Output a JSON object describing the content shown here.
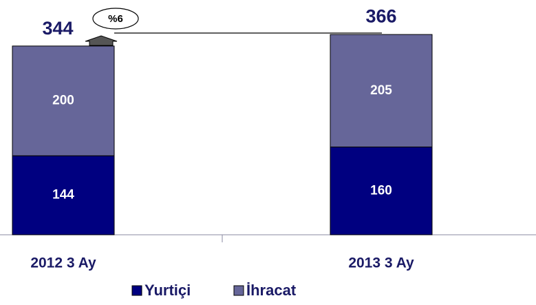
{
  "chart_data": {
    "type": "stacked-bar",
    "categories": [
      "2012 3 Ay",
      "2013 3 Ay"
    ],
    "series": [
      {
        "name": "Yurtiçi",
        "color": "#000080",
        "values": [
          144,
          160
        ]
      },
      {
        "name": "İhracat",
        "color": "#666699",
        "values": [
          200,
          205
        ]
      }
    ],
    "totals": [
      344,
      366
    ],
    "annotation": "%6"
  }
}
